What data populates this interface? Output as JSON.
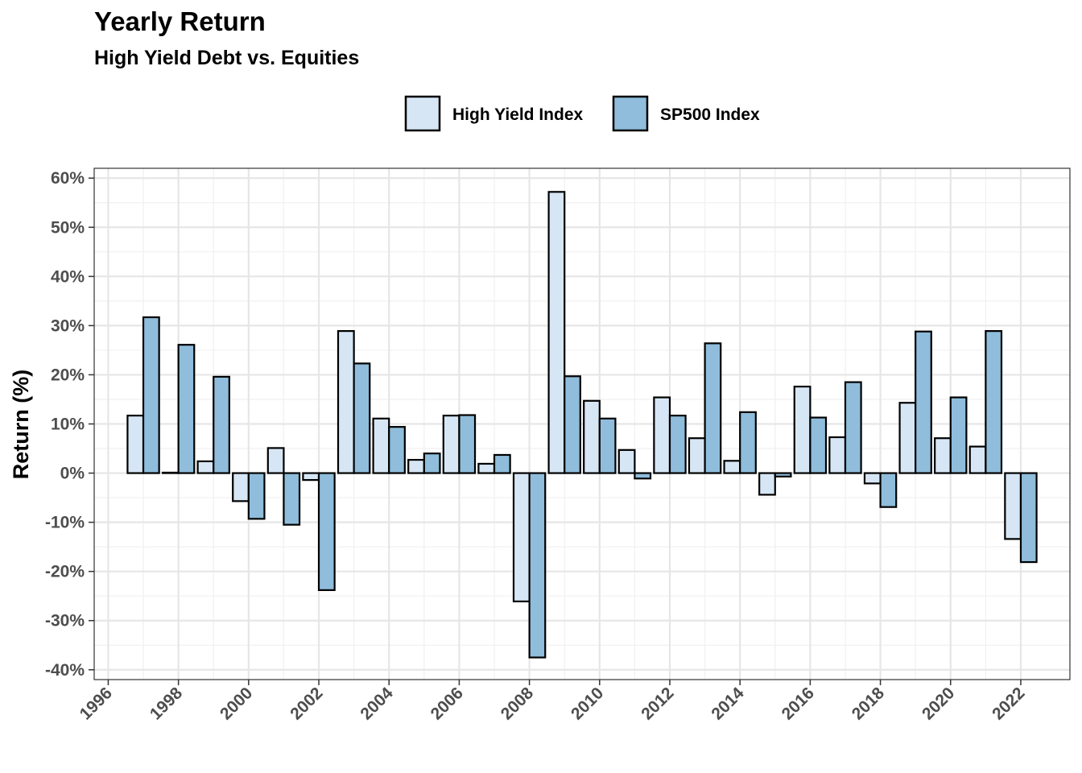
{
  "chart_data": {
    "type": "bar",
    "title": "Yearly Return",
    "subtitle": "High Yield Debt vs. Equities",
    "ylabel": "Return (%)",
    "xlabel": "",
    "ylim": [
      -0.42,
      0.62
    ],
    "xlim": [
      1995.6,
      2023.4
    ],
    "yticks": [
      -0.4,
      -0.3,
      -0.2,
      -0.1,
      0,
      0.1,
      0.2,
      0.3,
      0.4,
      0.5,
      0.6
    ],
    "ytick_labels": [
      "-40%",
      "-30%",
      "-20%",
      "-10%",
      "0%",
      "10%",
      "20%",
      "30%",
      "40%",
      "50%",
      "60%"
    ],
    "xticks": [
      1996,
      1998,
      2000,
      2002,
      2004,
      2006,
      2008,
      2010,
      2012,
      2014,
      2016,
      2018,
      2020,
      2022
    ],
    "xtick_labels": [
      "1996",
      "1998",
      "2000",
      "2002",
      "2004",
      "2006",
      "2008",
      "2010",
      "2012",
      "2014",
      "2016",
      "2018",
      "2020",
      "2022"
    ],
    "grid": true,
    "legend_position": "top",
    "x": [
      1997,
      1998,
      1999,
      2000,
      2001,
      2002,
      2003,
      2004,
      2005,
      2006,
      2007,
      2008,
      2009,
      2010,
      2011,
      2012,
      2013,
      2014,
      2015,
      2016,
      2017,
      2018,
      2019,
      2020,
      2021,
      2022
    ],
    "series": [
      {
        "name": "High Yield Index",
        "color": "#d7e6f5",
        "values": [
          0.117,
          0.001,
          0.024,
          -0.057,
          0.051,
          -0.014,
          0.289,
          0.111,
          0.027,
          0.117,
          0.019,
          -0.261,
          0.572,
          0.147,
          0.047,
          0.154,
          0.071,
          0.025,
          -0.044,
          0.176,
          0.073,
          -0.021,
          0.143,
          0.071,
          0.054,
          -0.134
        ]
      },
      {
        "name": "SP500 Index",
        "color": "#8fbddb",
        "values": [
          0.317,
          0.261,
          0.196,
          -0.093,
          -0.105,
          -0.238,
          0.223,
          0.094,
          0.04,
          0.118,
          0.037,
          -0.375,
          0.197,
          0.111,
          -0.011,
          0.117,
          0.264,
          0.124,
          -0.007,
          0.113,
          0.185,
          -0.069,
          0.288,
          0.154,
          0.289,
          -0.181
        ]
      }
    ]
  }
}
